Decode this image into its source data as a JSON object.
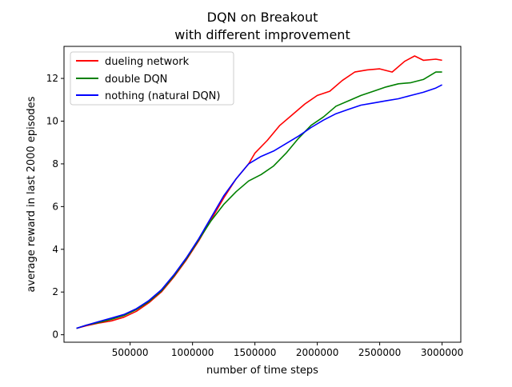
{
  "chart_data": {
    "type": "line",
    "title_line1": "DQN on Breakout",
    "title_line2": "with different improvement",
    "xlabel": "number of time steps",
    "ylabel": "average reward in last 2000 episodes",
    "xlim": [
      -30000,
      3150000
    ],
    "ylim": [
      -0.35,
      13.5
    ],
    "x_ticks": [
      500000,
      1000000,
      1500000,
      2000000,
      2500000,
      3000000
    ],
    "x_tick_labels": [
      "500000",
      "1000000",
      "1500000",
      "2000000",
      "2500000",
      "3000000"
    ],
    "y_ticks": [
      0,
      2,
      4,
      6,
      8,
      10,
      12
    ],
    "y_tick_labels": [
      "0",
      "2",
      "4",
      "6",
      "8",
      "10",
      "12"
    ],
    "grid": false,
    "legend_position": "top-left",
    "series": [
      {
        "name": "dueling network",
        "color": "#ff0000",
        "x": [
          70000,
          150000,
          250000,
          350000,
          450000,
          550000,
          650000,
          750000,
          850000,
          950000,
          1050000,
          1150000,
          1250000,
          1350000,
          1450000,
          1500000,
          1600000,
          1700000,
          1800000,
          1900000,
          2000000,
          2100000,
          2200000,
          2300000,
          2400000,
          2500000,
          2600000,
          2700000,
          2780000,
          2850000,
          2950000,
          3000000
        ],
        "y": [
          0.3,
          0.42,
          0.55,
          0.65,
          0.82,
          1.1,
          1.5,
          2.0,
          2.7,
          3.5,
          4.4,
          5.4,
          6.4,
          7.3,
          8.0,
          8.5,
          9.1,
          9.8,
          10.3,
          10.8,
          11.2,
          11.4,
          11.9,
          12.3,
          12.4,
          12.45,
          12.3,
          12.8,
          13.05,
          12.85,
          12.9,
          12.85
        ]
      },
      {
        "name": "double DQN",
        "color": "#008000",
        "x": [
          70000,
          150000,
          250000,
          350000,
          450000,
          550000,
          650000,
          750000,
          850000,
          950000,
          1050000,
          1150000,
          1250000,
          1350000,
          1450000,
          1550000,
          1650000,
          1750000,
          1850000,
          1950000,
          2050000,
          2150000,
          2250000,
          2350000,
          2450000,
          2550000,
          2650000,
          2750000,
          2850000,
          2950000,
          3000000
        ],
        "y": [
          0.3,
          0.45,
          0.58,
          0.72,
          0.9,
          1.18,
          1.55,
          2.05,
          2.75,
          3.55,
          4.45,
          5.35,
          6.1,
          6.7,
          7.2,
          7.5,
          7.9,
          8.5,
          9.2,
          9.8,
          10.2,
          10.7,
          10.95,
          11.2,
          11.4,
          11.6,
          11.75,
          11.8,
          11.95,
          12.3,
          12.3
        ]
      },
      {
        "name": "nothing (natural DQN)",
        "color": "#0000ff",
        "x": [
          70000,
          150000,
          250000,
          350000,
          450000,
          550000,
          650000,
          750000,
          850000,
          950000,
          1050000,
          1150000,
          1250000,
          1350000,
          1450000,
          1550000,
          1650000,
          1750000,
          1850000,
          1950000,
          2050000,
          2150000,
          2250000,
          2350000,
          2450000,
          2550000,
          2650000,
          2750000,
          2850000,
          2950000,
          3000000
        ],
        "y": [
          0.3,
          0.45,
          0.62,
          0.78,
          0.95,
          1.22,
          1.6,
          2.1,
          2.8,
          3.6,
          4.5,
          5.5,
          6.5,
          7.3,
          8.0,
          8.35,
          8.6,
          8.95,
          9.3,
          9.7,
          10.05,
          10.35,
          10.55,
          10.75,
          10.85,
          10.95,
          11.05,
          11.2,
          11.35,
          11.55,
          11.7
        ]
      }
    ]
  }
}
